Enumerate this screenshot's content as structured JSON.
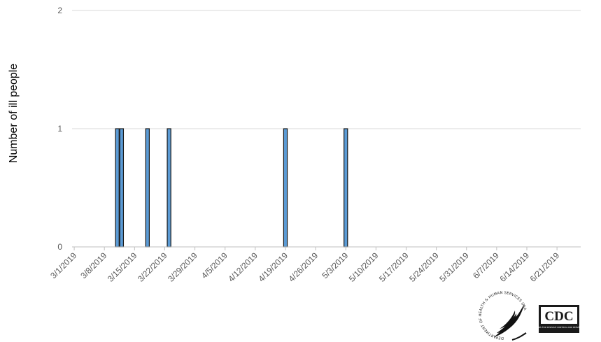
{
  "chart_data": {
    "type": "bar",
    "title": "",
    "xlabel": "",
    "ylabel": "Number of ill people",
    "ylim": [
      0,
      2
    ],
    "yticks": [
      "0",
      "1",
      "2"
    ],
    "xlim": [
      "2019-03-01",
      "2019-06-26"
    ],
    "xtick_labels": [
      "3/1/2019",
      "3/8/2019",
      "3/15/2019",
      "3/22/2019",
      "3/29/2019",
      "4/5/2019",
      "4/12/2019",
      "4/19/2019",
      "4/26/2019",
      "5/3/2019",
      "5/10/2019",
      "5/17/2019",
      "5/24/2019",
      "5/31/2019",
      "6/7/2019",
      "6/14/2019",
      "6/21/2019"
    ],
    "series": [
      {
        "points": [
          {
            "date": "2019-03-11",
            "value": 1
          },
          {
            "date": "2019-03-12",
            "value": 1
          },
          {
            "date": "2019-03-18",
            "value": 1
          },
          {
            "date": "2019-03-23",
            "value": 1
          },
          {
            "date": "2019-04-19",
            "value": 1
          },
          {
            "date": "2019-05-03",
            "value": 1
          }
        ]
      }
    ],
    "bar_color": "#5b9bd5",
    "bar_edge_color": "#1a1a1a",
    "grid": true,
    "legend": "none"
  },
  "logos": {
    "hhs_text": "DEPARTMENT OF HEALTH & HUMAN SERVICES USA",
    "cdc_text": "CDC",
    "cdc_subtext": "CENTERS FOR DISEASE CONTROL AND PREVENTION"
  }
}
